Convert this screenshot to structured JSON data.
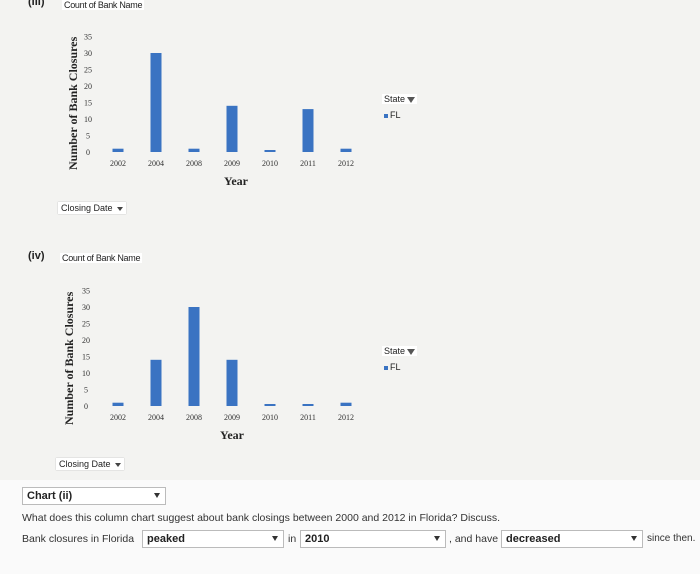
{
  "chart_iii": {
    "roman": "(III)",
    "count_label": "Count of Bank Name",
    "ylabel": "Number of Bank Closures",
    "xlabel": "Year",
    "legend_button": "State",
    "legend_item": "FL",
    "closing_button": "Closing Date"
  },
  "chart_iv": {
    "roman": "(iv)",
    "count_label": "Count of Bank Name",
    "ylabel": "Number of Bank Closures",
    "xlabel": "Year",
    "legend_button": "State",
    "legend_item": "FL",
    "closing_button": "Closing Date"
  },
  "chart_data": [
    {
      "type": "bar",
      "categories": [
        "2002",
        "2004",
        "2008",
        "2009",
        "2010",
        "2011",
        "2012"
      ],
      "series": [
        {
          "name": "FL",
          "values": [
            1,
            30,
            1,
            14,
            0.5,
            13,
            1
          ]
        }
      ],
      "xlabel": "Year",
      "ylabel": "Number of Bank Closures",
      "ylim": [
        0,
        35
      ],
      "yticks": [
        0,
        5,
        10,
        15,
        20,
        25,
        30,
        35
      ],
      "grid": false,
      "legend": "right",
      "color": "#3a73c2"
    },
    {
      "type": "bar",
      "categories": [
        "2002",
        "2004",
        "2008",
        "2009",
        "2010",
        "2011",
        "2012"
      ],
      "series": [
        {
          "name": "FL",
          "values": [
            1,
            14,
            30,
            14,
            0.5,
            0.5,
            1
          ]
        }
      ],
      "xlabel": "Year",
      "ylabel": "Number of Bank Closures",
      "ylim": [
        0,
        35
      ],
      "yticks": [
        0,
        5,
        10,
        15,
        20,
        25,
        30,
        35
      ],
      "grid": false,
      "legend": "right",
      "color": "#3a73c2"
    }
  ],
  "question": {
    "chart_select": "Chart (ii)",
    "prompt": "What does this column chart suggest about bank closings between 2000 and 2012 in Florida? Discuss.",
    "sentence_start": "Bank closures in Florida",
    "select1": "peaked",
    "word_in": "in",
    "select2": "2010",
    "word_and": ", and have",
    "select3": "decreased",
    "sentence_end": "since then."
  }
}
